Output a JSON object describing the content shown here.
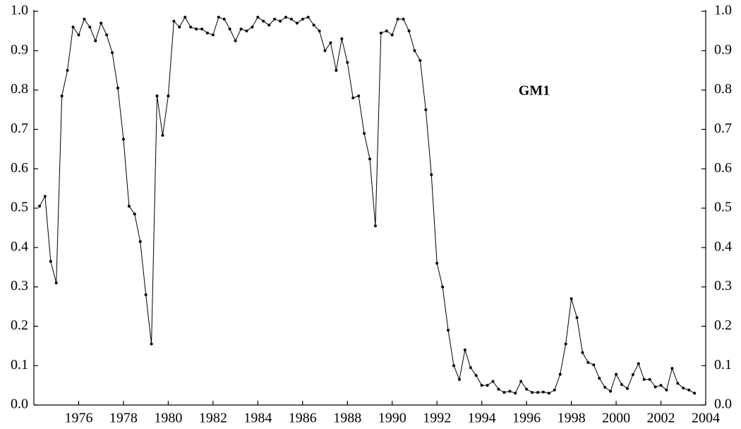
{
  "chart_data": {
    "type": "line",
    "annotation": "GM1",
    "color": "#000000",
    "markers": true,
    "x": [
      1974.25,
      1974.5,
      1974.75,
      1975,
      1975.25,
      1975.5,
      1975.75,
      1976,
      1976.25,
      1976.5,
      1976.75,
      1977,
      1977.25,
      1977.5,
      1977.75,
      1978,
      1978.25,
      1978.5,
      1978.75,
      1979,
      1979.25,
      1979.5,
      1979.75,
      1980,
      1980.25,
      1980.5,
      1980.75,
      1981,
      1981.25,
      1981.5,
      1981.75,
      1982,
      1982.25,
      1982.5,
      1982.75,
      1983,
      1983.25,
      1983.5,
      1983.75,
      1984,
      1984.25,
      1984.5,
      1984.75,
      1985,
      1985.25,
      1985.5,
      1985.75,
      1986,
      1986.25,
      1986.5,
      1986.75,
      1987,
      1987.25,
      1987.5,
      1987.75,
      1988,
      1988.25,
      1988.5,
      1988.75,
      1989,
      1989.25,
      1989.5,
      1989.75,
      1990,
      1990.25,
      1990.5,
      1990.75,
      1991,
      1991.25,
      1991.5,
      1991.75,
      1992,
      1992.25,
      1992.5,
      1992.75,
      1993,
      1993.25,
      1993.5,
      1993.75,
      1994,
      1994.25,
      1994.5,
      1994.75,
      1995,
      1995.25,
      1995.5,
      1995.75,
      1996,
      1996.25,
      1996.5,
      1996.75,
      1997,
      1997.25,
      1997.5,
      1997.75,
      1998,
      1998.25,
      1998.5,
      1998.75,
      1999,
      1999.25,
      1999.5,
      1999.75,
      2000,
      2000.25,
      2000.5,
      2000.75,
      2001,
      2001.25,
      2001.5,
      2001.75,
      2002,
      2002.25,
      2002.5,
      2002.75,
      2003,
      2003.25,
      2003.5
    ],
    "values": [
      0.505,
      0.53,
      0.365,
      0.31,
      0.785,
      0.85,
      0.96,
      0.94,
      0.98,
      0.96,
      0.925,
      0.97,
      0.94,
      0.895,
      0.805,
      0.675,
      0.505,
      0.485,
      0.415,
      0.28,
      0.155,
      0.785,
      0.685,
      0.785,
      0.975,
      0.96,
      0.985,
      0.96,
      0.955,
      0.955,
      0.945,
      0.94,
      0.985,
      0.98,
      0.955,
      0.925,
      0.955,
      0.95,
      0.96,
      0.985,
      0.975,
      0.965,
      0.98,
      0.975,
      0.985,
      0.98,
      0.97,
      0.98,
      0.985,
      0.965,
      0.95,
      0.9,
      0.92,
      0.85,
      0.93,
      0.87,
      0.78,
      0.785,
      0.69,
      0.625,
      0.455,
      0.945,
      0.95,
      0.94,
      0.98,
      0.98,
      0.95,
      0.9,
      0.875,
      0.75,
      0.585,
      0.36,
      0.3,
      0.19,
      0.1,
      0.065,
      0.14,
      0.095,
      0.075,
      0.05,
      0.05,
      0.06,
      0.04,
      0.032,
      0.035,
      0.03,
      0.06,
      0.04,
      0.032,
      0.032,
      0.033,
      0.03,
      0.038,
      0.078,
      0.155,
      0.27,
      0.222,
      0.133,
      0.108,
      0.102,
      0.068,
      0.045,
      0.035,
      0.078,
      0.052,
      0.042,
      0.077,
      0.105,
      0.065,
      0.065,
      0.046,
      0.05,
      0.038,
      0.093,
      0.055,
      0.043,
      0.038,
      0.03
    ],
    "xlim": [
      1974,
      2004
    ],
    "xticks": [
      1976,
      1978,
      1980,
      1982,
      1984,
      1986,
      1988,
      1990,
      1992,
      1994,
      1996,
      1998,
      2000,
      2002,
      2004
    ],
    "ylim": [
      0,
      1
    ],
    "yticks": [
      {
        "value": 0,
        "label": "0.0"
      },
      {
        "value": 0.1,
        "label": "0.1"
      },
      {
        "value": 0.2,
        "label": "0.2"
      },
      {
        "value": 0.3,
        "label": "0.3"
      },
      {
        "value": 0.4,
        "label": "0.4"
      },
      {
        "value": 0.5,
        "label": "0.5"
      },
      {
        "value": 0.6,
        "label": "0.6"
      },
      {
        "value": 0.7,
        "label": "0.7"
      },
      {
        "value": 0.8,
        "label": "0.8"
      },
      {
        "value": 0.9,
        "label": "0.9"
      },
      {
        "value": 1,
        "label": "1.0"
      }
    ]
  }
}
